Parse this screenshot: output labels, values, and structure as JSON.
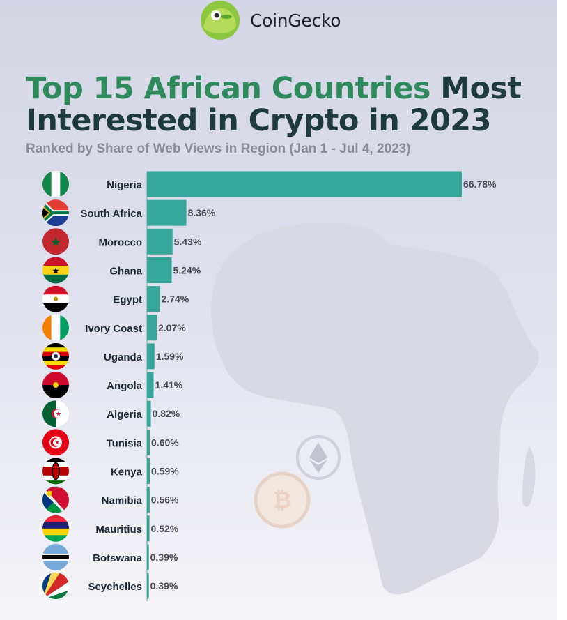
{
  "brand": {
    "name": "CoinGecko",
    "logo_icon": "gecko-logo-icon"
  },
  "title": {
    "highlight": "Top 15 African Countries",
    "rest_line1": " Most",
    "line2": "Interested in Crypto in 2023"
  },
  "subtitle": "Ranked by Share of Web Views in Region (Jan 1 - Jul 4, 2023)",
  "colors": {
    "bar": "#37a69a",
    "title_highlight": "#2f8a5c",
    "title": "#1d3a3f",
    "subtitle": "#8a8c96",
    "map": "#d8d8e2"
  },
  "chart_data": {
    "type": "bar",
    "orientation": "horizontal",
    "title": "Top 15 African Countries Most Interested in Crypto in 2023",
    "subtitle": "Ranked by Share of Web Views in Region (Jan 1 - Jul 4, 2023)",
    "unit": "%",
    "categories": [
      "Nigeria",
      "South Africa",
      "Morocco",
      "Ghana",
      "Egypt",
      "Ivory Coast",
      "Uganda",
      "Angola",
      "Algeria",
      "Tunisia",
      "Kenya",
      "Namibia",
      "Mauritius",
      "Botswana",
      "Seychelles"
    ],
    "values": [
      66.78,
      8.36,
      5.43,
      5.24,
      2.74,
      2.07,
      1.59,
      1.41,
      0.82,
      0.6,
      0.59,
      0.56,
      0.52,
      0.39,
      0.39
    ],
    "labels": [
      "66.78%",
      "8.36%",
      "5.43%",
      "5.24%",
      "2.74%",
      "2.07%",
      "1.59%",
      "1.41%",
      "0.82%",
      "0.60%",
      "0.59%",
      "0.56%",
      "0.52%",
      "0.39%",
      "0.39%"
    ],
    "flags": [
      "nigeria-flag-icon",
      "south-africa-flag-icon",
      "morocco-flag-icon",
      "ghana-flag-icon",
      "egypt-flag-icon",
      "ivory-coast-flag-icon",
      "uganda-flag-icon",
      "angola-flag-icon",
      "algeria-flag-icon",
      "tunisia-flag-icon",
      "kenya-flag-icon",
      "namibia-flag-icon",
      "mauritius-flag-icon",
      "botswana-flag-icon",
      "seychelles-flag-icon"
    ],
    "xlim": [
      0,
      66.78
    ],
    "grid": false,
    "legend": "none"
  }
}
